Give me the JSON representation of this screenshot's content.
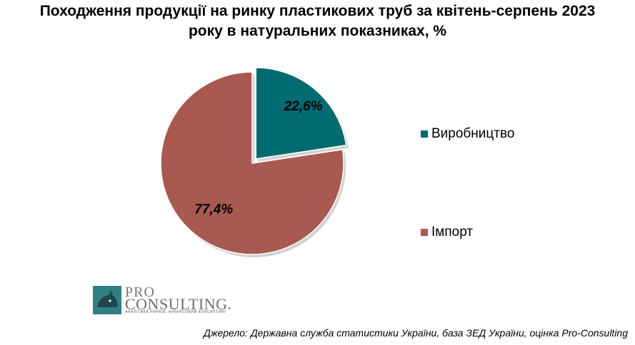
{
  "chart_data": {
    "type": "pie",
    "title_lines": [
      "Походження продукції на ринку пластикових труб за квітень-серпень 2023",
      "року в натуральних показниках, %"
    ],
    "slices": [
      {
        "name": "Виробництво",
        "value": 22.6,
        "label": "22,6%",
        "color": "#006b70",
        "exploded": true
      },
      {
        "name": "Імпорт",
        "value": 77.4,
        "label": "77,4%",
        "color": "#a85a50",
        "exploded": false
      }
    ],
    "legend_position": "right"
  },
  "logo": {
    "line1": "PRO",
    "line2": "CONSULTING.",
    "tagline": "АНАЛІТИКА РИНКІВ. ФІНАНСОВИЙ КОНСАЛТИНГ"
  },
  "source": "Джерело: Державна служба статистики України, база ЗЕД України, оцінка Pro-Consulting"
}
